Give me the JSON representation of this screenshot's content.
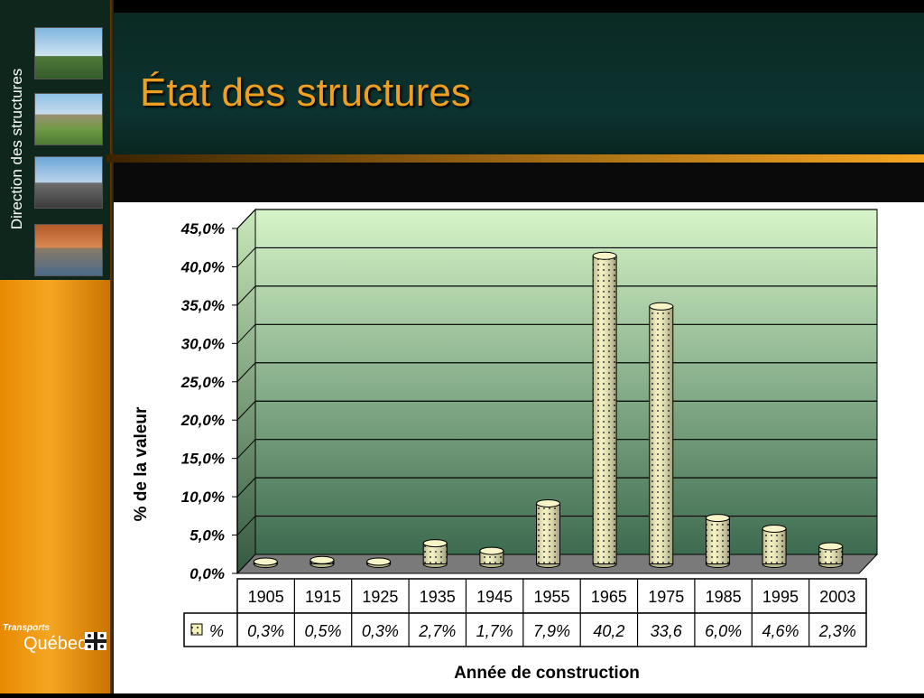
{
  "sidebar": {
    "title": "Direction des structures"
  },
  "header": {
    "title": "État des structures"
  },
  "logo": {
    "line1": "Transports",
    "line2": "Québec"
  },
  "colors": {
    "accent": "#f0a020",
    "plot_top": "#d6f5c8",
    "plot_bottom": "#3d6b50",
    "bar_fill": "#f3f0b8"
  },
  "chart_data": {
    "type": "bar",
    "categories": [
      "1905",
      "1915",
      "1925",
      "1935",
      "1945",
      "1955",
      "1965",
      "1975",
      "1985",
      "1995",
      "2003"
    ],
    "values": [
      0.3,
      0.5,
      0.3,
      2.7,
      1.7,
      7.9,
      40.2,
      33.6,
      6.0,
      4.6,
      2.3
    ],
    "series": [
      {
        "name": "%",
        "values": [
          0.3,
          0.5,
          0.3,
          2.7,
          1.7,
          7.9,
          40.2,
          33.6,
          6.0,
          4.6,
          2.3
        ]
      }
    ],
    "table_labels": [
      "0,3%",
      "0,5%",
      "0,3%",
      "2,7%",
      "1,7%",
      "7,9%",
      "40,2",
      "33,6",
      "6,0%",
      "4,6%",
      "2,3%"
    ],
    "y_ticks": [
      "0,0%",
      "5,0%",
      "10,0%",
      "15,0%",
      "20,0%",
      "25,0%",
      "30,0%",
      "35,0%",
      "40,0%",
      "45,0%"
    ],
    "ylim": [
      0,
      45
    ],
    "xlabel": "Année de construction",
    "ylabel": "% de la valeur",
    "legend": "data table",
    "grid": true
  }
}
